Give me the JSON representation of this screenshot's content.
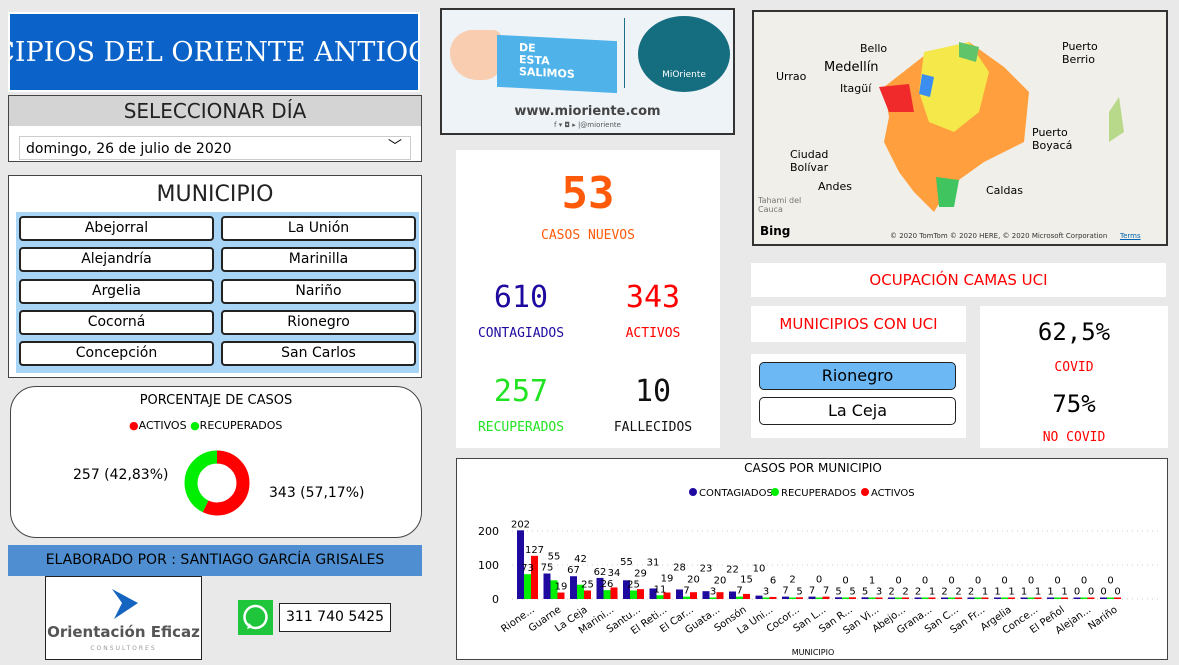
{
  "title": "MUNICIPIOS DEL ORIENTE ANTIOQUEÑO",
  "day": {
    "header": "SELECCIONAR DÍA",
    "value": "domingo, 26 de julio de 2020"
  },
  "municipio": {
    "header": "MUNICIPIO",
    "items": [
      "Abejorral",
      "La Unión",
      "Alejandría",
      "Marinilla",
      "Argelia",
      "Nariño",
      "Cocorná",
      "Rionegro",
      "Concepción",
      "San Carlos"
    ]
  },
  "donut": {
    "title": "PORCENTAJE DE CASOS",
    "legend": [
      "ACTIVOS",
      "RECUPERADOS"
    ],
    "colors": [
      "#ff0000",
      "#00ee00"
    ],
    "values": [
      343,
      257
    ],
    "labels": [
      "343 (57,17%)",
      "257 (42,83%)"
    ]
  },
  "credits": {
    "by": "ELABORADO POR : SANTIAGO GARCÍA GRISALES",
    "logo_text": "Orientación Eficaz",
    "logo_sub": "CONSULTORES",
    "phone": "311 740 5425"
  },
  "banner": {
    "text": [
      "DE",
      "ESTA",
      "SALIMOS"
    ],
    "brand": "MiOriente",
    "url": "www.mioriente.com",
    "social": "f ▾ ◘ ▸ |@mioriente"
  },
  "kpi": {
    "nuevos": "53",
    "nuevos_label": "CASOS NUEVOS",
    "contagiados": "610",
    "contagiados_label": "CONTAGIADOS",
    "activos": "343",
    "activos_label": "ACTIVOS",
    "recuperados": "257",
    "recuperados_label": "RECUPERADOS",
    "fallecidos": "10",
    "fallecidos_label": "FALLECIDOS"
  },
  "map": {
    "labels": [
      "Bello",
      "Medellín",
      "Urrao",
      "Itagüí",
      "Puerto Berrio",
      "Puerto Boyacá",
      "Ciudad Bolívar",
      "Andes",
      "Caldas",
      "Tahami del Cauca",
      "Bing",
      "© 2020 TomTom © 2020 HERE, © 2020 Microsoft Corporation",
      "Terms"
    ]
  },
  "uci": {
    "title": "OCUPACIÓN CAMAS UCI",
    "municipios_title": "MUNICIPIOS CON UCI",
    "municipios": [
      "Rionegro",
      "La Ceja"
    ],
    "covid_pct": "62,5%",
    "covid_label": "COVID",
    "nocovid_pct": "75%",
    "nocovid_label": "NO COVID"
  },
  "chart_data": {
    "type": "bar",
    "title": "CASOS POR MUNICIPIO",
    "xlabel": "MUNICIPIO",
    "ylabel": "",
    "ylim": [
      0,
      220
    ],
    "yticks": [
      0,
      100,
      200
    ],
    "categories": [
      "Rione...",
      "Guarne",
      "La Ceja",
      "Marini...",
      "Santu...",
      "El Reti...",
      "El Car...",
      "Guata...",
      "Sonsón",
      "La Uni...",
      "Cocor...",
      "San L...",
      "San R...",
      "San Vi...",
      "Abejo...",
      "Grana...",
      "San C...",
      "San Fr...",
      "Argelia",
      "Conce...",
      "El Peñol",
      "Alejan...",
      "Nariño"
    ],
    "series": [
      {
        "name": "CONTAGIADOS",
        "color": "#1f0aa0",
        "values": [
          202,
          75,
          67,
          62,
          55,
          31,
          28,
          23,
          22,
          10,
          7,
          7,
          5,
          5,
          2,
          2,
          2,
          2,
          1,
          1,
          1,
          0,
          0
        ]
      },
      {
        "name": "RECUPERADOS",
        "color": "#00ee00",
        "values": [
          73,
          55,
          42,
          26,
          25,
          11,
          7,
          3,
          7,
          3,
          2,
          0,
          0,
          1,
          0,
          0,
          0,
          0,
          0,
          0,
          0,
          0,
          0
        ]
      },
      {
        "name": "ACTIVOS",
        "color": "#ff0000",
        "values": [
          127,
          19,
          25,
          34,
          29,
          19,
          20,
          20,
          15,
          6,
          5,
          7,
          5,
          3,
          2,
          1,
          2,
          1,
          1,
          1,
          1,
          0,
          0
        ]
      }
    ]
  }
}
